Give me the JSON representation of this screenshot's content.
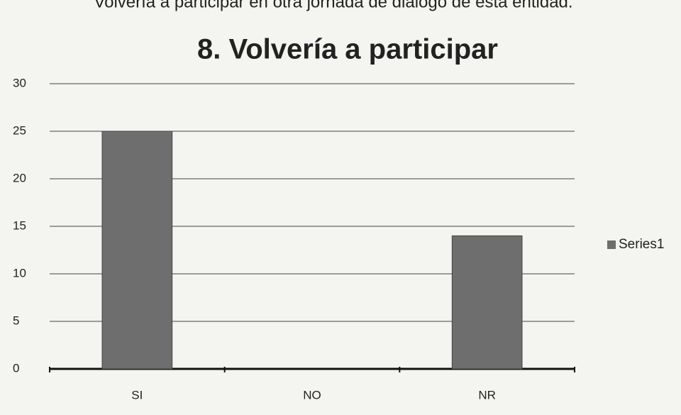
{
  "chart_data": {
    "type": "bar",
    "heading": "Volvería a participar en otra jornada de diálogo de esta entidad.",
    "title": "8. Volvería a participar",
    "categories": [
      "SI",
      "NO",
      "NR"
    ],
    "series": [
      {
        "name": "Series1",
        "color": "#6e6e6e",
        "values": [
          25,
          0,
          14
        ]
      }
    ],
    "ylim": [
      0,
      30
    ],
    "yticks": [
      0,
      5,
      10,
      15,
      20,
      25,
      30
    ],
    "grid": true,
    "legend": "right"
  }
}
